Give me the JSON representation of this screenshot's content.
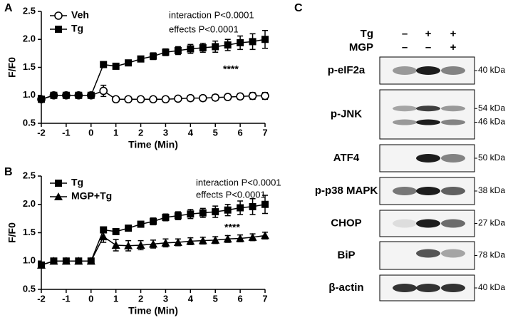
{
  "chart_data": [
    {
      "type": "line",
      "panel": "A",
      "ylabel": "F/F0",
      "xlabel": "Time (Min)",
      "annotations": [
        "interaction P<0.0001",
        "effects P<0.0001",
        "****"
      ],
      "x": [
        -2,
        -1.5,
        -1,
        -0.5,
        0,
        0.5,
        1,
        1.5,
        2,
        2.5,
        3,
        3.5,
        4,
        4.5,
        5,
        5.5,
        6,
        6.5,
        7
      ],
      "xlim": [
        -2,
        7
      ],
      "xticks": [
        -2,
        -1,
        0,
        1,
        2,
        3,
        4,
        5,
        6,
        7
      ],
      "ylim": [
        0.5,
        2.5
      ],
      "yticks": [
        0.5,
        {
          "value": 1,
          "label": "1.0"
        },
        1.5,
        {
          "value": 2,
          "label": "2.0"
        },
        2.5
      ],
      "series": [
        {
          "name": "Veh",
          "color": "#000000",
          "marker": "open-circle",
          "values": [
            0.93,
            1.0,
            1.0,
            1.0,
            1.0,
            1.08,
            0.93,
            0.93,
            0.93,
            0.93,
            0.93,
            0.94,
            0.95,
            0.95,
            0.96,
            0.97,
            0.98,
            0.99,
            0.99
          ],
          "errors": [
            0.03,
            0.02,
            0.02,
            0.02,
            0.02,
            0.1,
            0.03,
            0.03,
            0.03,
            0.04,
            0.04,
            0.04,
            0.05,
            0.05,
            0.05,
            0.05,
            0.05,
            0.06,
            0.06
          ]
        },
        {
          "name": "Tg",
          "color": "#000000",
          "marker": "square",
          "values": [
            0.93,
            1.0,
            1.0,
            1.0,
            1.0,
            1.55,
            1.52,
            1.58,
            1.65,
            1.7,
            1.77,
            1.8,
            1.83,
            1.85,
            1.87,
            1.9,
            1.94,
            1.96,
            2.0
          ],
          "errors": [
            0.03,
            0.02,
            0.02,
            0.02,
            0.02,
            0.04,
            0.05,
            0.05,
            0.05,
            0.06,
            0.06,
            0.07,
            0.08,
            0.08,
            0.1,
            0.1,
            0.12,
            0.14,
            0.16
          ]
        }
      ]
    },
    {
      "type": "line",
      "panel": "B",
      "ylabel": "F/F0",
      "xlabel": "Time (Min)",
      "annotations": [
        "interaction P<0.0001",
        "effects P<0.0001",
        "****"
      ],
      "x": [
        -2,
        -1.5,
        -1,
        -0.5,
        0,
        0.5,
        1,
        1.5,
        2,
        2.5,
        3,
        3.5,
        4,
        4.5,
        5,
        5.5,
        6,
        6.5,
        7
      ],
      "xlim": [
        -2,
        7
      ],
      "xticks": [
        -2,
        -1,
        0,
        1,
        2,
        3,
        4,
        5,
        6,
        7
      ],
      "ylim": [
        0.5,
        2.5
      ],
      "yticks": [
        0.5,
        {
          "value": 1,
          "label": "1.0"
        },
        1.5,
        {
          "value": 2,
          "label": "2.0"
        },
        2.5
      ],
      "series": [
        {
          "name": "Tg",
          "color": "#000000",
          "marker": "square",
          "values": [
            0.93,
            1.0,
            1.0,
            1.0,
            1.0,
            1.55,
            1.52,
            1.58,
            1.65,
            1.7,
            1.77,
            1.8,
            1.83,
            1.85,
            1.87,
            1.9,
            1.94,
            1.96,
            2.0
          ],
          "errors": [
            0.03,
            0.02,
            0.02,
            0.02,
            0.02,
            0.04,
            0.05,
            0.05,
            0.05,
            0.06,
            0.06,
            0.07,
            0.08,
            0.08,
            0.1,
            0.1,
            0.12,
            0.14,
            0.16
          ]
        },
        {
          "name": "MGP+Tg",
          "color": "#000000",
          "marker": "triangle",
          "values": [
            0.93,
            1.0,
            1.0,
            1.0,
            1.0,
            1.43,
            1.28,
            1.27,
            1.28,
            1.3,
            1.32,
            1.33,
            1.35,
            1.36,
            1.37,
            1.39,
            1.4,
            1.42,
            1.45
          ],
          "errors": [
            0.03,
            0.02,
            0.02,
            0.02,
            0.02,
            0.1,
            0.1,
            0.09,
            0.08,
            0.07,
            0.07,
            0.06,
            0.06,
            0.06,
            0.06,
            0.06,
            0.06,
            0.06,
            0.06
          ]
        }
      ]
    }
  ],
  "blot": {
    "panel": "C",
    "conditions": [
      {
        "name": "Tg",
        "lanes": [
          "–",
          "+",
          "+"
        ]
      },
      {
        "name": "MGP",
        "lanes": [
          "–",
          "–",
          "+"
        ]
      }
    ],
    "rows": [
      {
        "label": "p-eIF2a",
        "kda": [
          "40 kDa"
        ]
      },
      {
        "label": "p-JNK",
        "kda": [
          "54 kDa",
          "46 kDa"
        ]
      },
      {
        "label": "ATF4",
        "kda": [
          "50 kDa"
        ]
      },
      {
        "label": "p-p38 MAPK",
        "kda": [
          "38 kDa"
        ]
      },
      {
        "label": "CHOP",
        "kda": [
          "27 kDa"
        ]
      },
      {
        "label": "BiP",
        "kda": [
          "78 kDa"
        ]
      },
      {
        "label": "β-actin",
        "kda": [
          "40 kDa"
        ]
      }
    ]
  }
}
